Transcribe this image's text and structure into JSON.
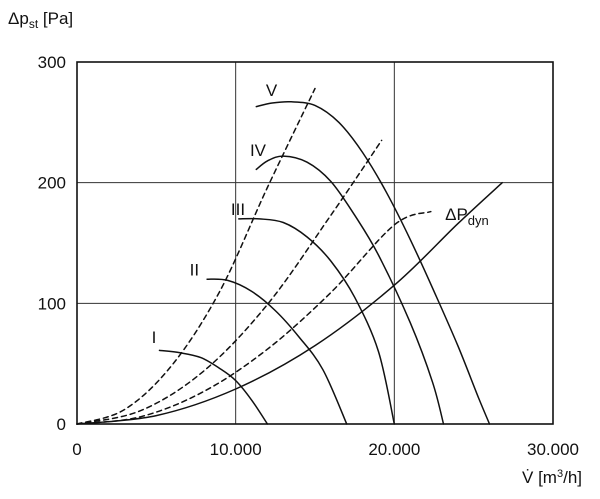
{
  "chart_data": {
    "type": "line",
    "ylabel": {
      "main": "Δp",
      "sub": "st",
      "unit": " [Pa]"
    },
    "xlabel": {
      "main": "V̇",
      "unit_pre": " [m",
      "unit_sup": "3",
      "unit_post": "/h]"
    },
    "xlim": [
      0,
      30000
    ],
    "ylim": [
      0,
      300
    ],
    "x_ticks": [
      0,
      10000,
      20000,
      30000
    ],
    "x_tick_labels": [
      "0",
      "10.000",
      "20.000",
      "30.000"
    ],
    "y_ticks": [
      0,
      100,
      200,
      300
    ],
    "y_tick_labels": [
      "0",
      "100",
      "200",
      "300"
    ],
    "grid": true,
    "series": [
      {
        "name": "I",
        "style": "solid",
        "label_at": [
          4700,
          67
        ],
        "points": [
          [
            5200,
            61
          ],
          [
            6500,
            59
          ],
          [
            7800,
            55
          ],
          [
            9000,
            46
          ],
          [
            10000,
            36
          ],
          [
            11000,
            20
          ],
          [
            12000,
            0
          ]
        ]
      },
      {
        "name": "II",
        "style": "solid",
        "label_at": [
          7100,
          123
        ],
        "points": [
          [
            8200,
            120
          ],
          [
            9500,
            119
          ],
          [
            11000,
            110
          ],
          [
            12500,
            94
          ],
          [
            14000,
            72
          ],
          [
            15500,
            45
          ],
          [
            17000,
            0
          ]
        ]
      },
      {
        "name": "III",
        "style": "solid",
        "label_at": [
          9700,
          173
        ],
        "points": [
          [
            10200,
            170
          ],
          [
            11500,
            170
          ],
          [
            13000,
            167
          ],
          [
            14500,
            155
          ],
          [
            16000,
            135
          ],
          [
            17500,
            105
          ],
          [
            19000,
            60
          ],
          [
            20000,
            0
          ]
        ]
      },
      {
        "name": "IV",
        "style": "solid",
        "label_at": [
          10900,
          222
        ],
        "points": [
          [
            11300,
            211
          ],
          [
            12000,
            218
          ],
          [
            13000,
            222
          ],
          [
            14500,
            217
          ],
          [
            16000,
            201
          ],
          [
            17500,
            173
          ],
          [
            19000,
            140
          ],
          [
            21000,
            84
          ],
          [
            22400,
            35
          ],
          [
            23100,
            0
          ]
        ]
      },
      {
        "name": "V",
        "style": "solid",
        "label_at": [
          11900,
          272
        ],
        "points": [
          [
            11300,
            263
          ],
          [
            12300,
            266
          ],
          [
            13500,
            267
          ],
          [
            15000,
            264
          ],
          [
            16500,
            250
          ],
          [
            18000,
            225
          ],
          [
            19500,
            192
          ],
          [
            21000,
            153
          ],
          [
            22500,
            110
          ],
          [
            24000,
            65
          ],
          [
            25300,
            22
          ],
          [
            26000,
            0
          ]
        ]
      },
      {
        "name": "ΔP",
        "sub": "dyn",
        "style": "solid",
        "label_at": [
          23200,
          169
        ],
        "points": [
          [
            0,
            0
          ],
          [
            5000,
            7
          ],
          [
            10000,
            29
          ],
          [
            15000,
            65
          ],
          [
            20000,
            115
          ],
          [
            24000,
            166
          ],
          [
            26800,
            200
          ]
        ]
      },
      {
        "name": "dashed-I",
        "style": "dashed",
        "points": [
          [
            0,
            0
          ],
          [
            3000,
            12
          ],
          [
            6000,
            49
          ],
          [
            9000,
            110
          ],
          [
            12000,
            196
          ],
          [
            15000,
            278
          ]
        ]
      },
      {
        "name": "dashed-II",
        "style": "dashed",
        "points": [
          [
            0,
            0
          ],
          [
            4000,
            11
          ],
          [
            8000,
            44
          ],
          [
            12000,
            99
          ],
          [
            16000,
            173
          ],
          [
            19200,
            235
          ]
        ]
      },
      {
        "name": "dashed-III",
        "style": "dashed",
        "points": [
          [
            0,
            0
          ],
          [
            4000,
            6
          ],
          [
            8000,
            27
          ],
          [
            12000,
            62
          ],
          [
            16000,
            109
          ],
          [
            20000,
            165
          ],
          [
            22300,
            176
          ]
        ]
      }
    ]
  }
}
